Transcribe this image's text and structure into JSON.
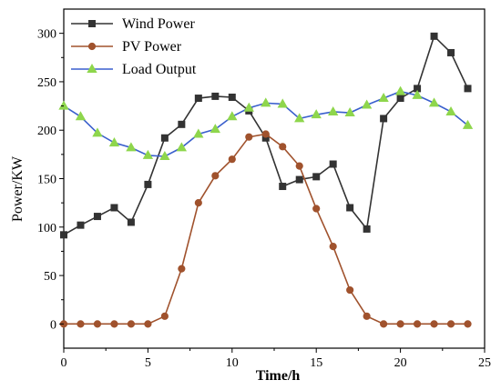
{
  "chart_data": {
    "type": "line",
    "title": "",
    "xlabel": "Time/h",
    "ylabel": "Power/KW",
    "xlim": [
      0,
      25
    ],
    "ylim": [
      -25,
      325
    ],
    "xticks": [
      0,
      5,
      10,
      15,
      20,
      25
    ],
    "yticks": [
      0,
      50,
      100,
      150,
      200,
      250,
      300
    ],
    "x_tick_labels": [
      "0",
      "5",
      "10",
      "15",
      "20",
      "25"
    ],
    "y_tick_labels": [
      "0",
      "50",
      "100",
      "150",
      "200",
      "250",
      "300"
    ],
    "grid": false,
    "legend_position": "top-left",
    "x": [
      0,
      1,
      2,
      3,
      4,
      5,
      6,
      7,
      8,
      9,
      10,
      11,
      12,
      13,
      14,
      15,
      16,
      17,
      18,
      19,
      20,
      21,
      22,
      23,
      24
    ],
    "series": [
      {
        "name": "Wind Power",
        "color": "#333333",
        "marker": "square",
        "values": [
          92,
          102,
          111,
          120,
          105,
          144,
          192,
          206,
          233,
          235,
          234,
          220,
          192,
          142,
          149,
          152,
          165,
          120,
          98,
          212,
          233,
          243,
          297,
          280,
          243
        ]
      },
      {
        "name": "PV Power",
        "color": "#a0522d",
        "marker": "circle",
        "values": [
          0,
          0,
          0,
          0,
          0,
          0,
          8,
          57,
          125,
          153,
          170,
          193,
          196,
          183,
          163,
          119,
          80,
          35,
          8,
          0,
          0,
          0,
          0,
          0,
          0
        ]
      },
      {
        "name": "Load Output",
        "color": "#3a5fcd",
        "marker": "triangle",
        "marker_color": "#8ed64c",
        "values": [
          225,
          214,
          197,
          187,
          182,
          174,
          173,
          182,
          196,
          201,
          214,
          223,
          228,
          227,
          212,
          216,
          219,
          218,
          226,
          233,
          240,
          236,
          228,
          219,
          205
        ]
      }
    ]
  }
}
